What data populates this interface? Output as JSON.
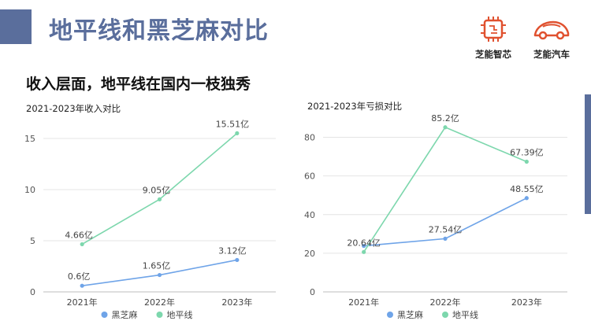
{
  "page": {
    "title": "地平线和黑芝麻对比",
    "subtitle": "收入层面，地平线在国内一枝独秀"
  },
  "logos": [
    {
      "name": "芝能智芯",
      "icon": "chip-icon"
    },
    {
      "name": "芝能汽车",
      "icon": "car-icon"
    }
  ],
  "colors": {
    "brand": "#5a6e9c",
    "black_sesame": "#6fa4e8",
    "horizon": "#7dd7ad",
    "logo_red": "#e0512f"
  },
  "chart_data": [
    {
      "type": "line",
      "title": "2021-2023年收入对比",
      "categories": [
        "2021年",
        "2022年",
        "2023年"
      ],
      "ylim": [
        0,
        17
      ],
      "yticks": [
        0,
        5,
        10,
        15
      ],
      "legend": "bottom-center",
      "grid": true,
      "series": [
        {
          "name": "黑芝麻",
          "color": "#6fa4e8",
          "values": [
            0.6,
            1.65,
            3.12
          ],
          "labels": [
            "0.6亿",
            "1.65亿",
            "3.12亿"
          ]
        },
        {
          "name": "地平线",
          "color": "#7dd7ad",
          "values": [
            4.66,
            9.05,
            15.51
          ],
          "labels": [
            "4.66亿",
            "9.05亿",
            "15.51亿"
          ]
        }
      ]
    },
    {
      "type": "line",
      "title": "2021-2023年亏损对比",
      "categories": [
        "2021年",
        "2022年",
        "2023年"
      ],
      "ylim": [
        0,
        90
      ],
      "yticks": [
        0,
        20,
        40,
        60,
        80
      ],
      "legend": "bottom-center",
      "grid": true,
      "series": [
        {
          "name": "黑芝麻",
          "color": "#6fa4e8",
          "values": [
            23.8,
            27.54,
            48.55
          ],
          "labels": [
            "",
            "27.54亿",
            "48.55亿"
          ]
        },
        {
          "name": "地平线",
          "color": "#7dd7ad",
          "values": [
            20.64,
            85.2,
            67.39
          ],
          "labels": [
            "20.64亿",
            "85.2亿",
            "67.39亿"
          ]
        }
      ]
    }
  ]
}
